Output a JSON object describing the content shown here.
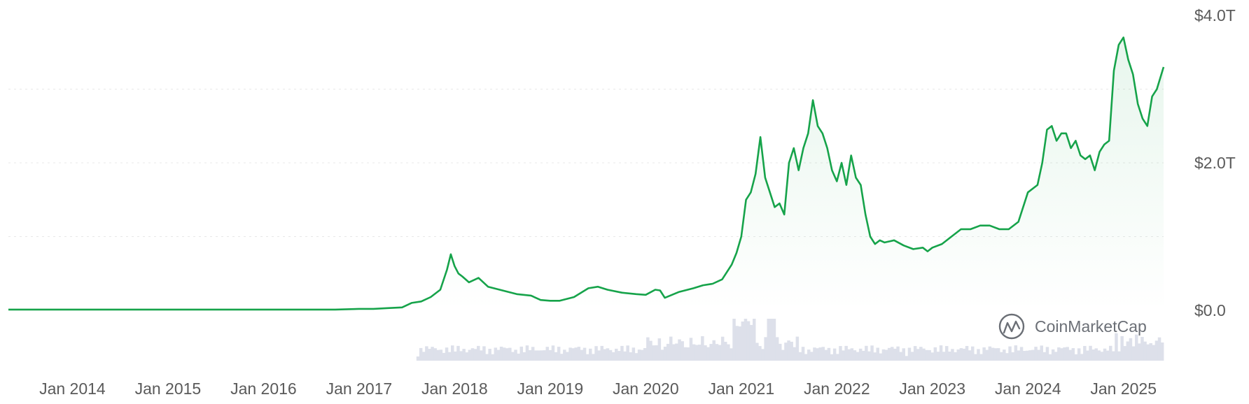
{
  "chart_data": {
    "type": "area",
    "title": "",
    "xlabel": "",
    "ylabel": "",
    "x_ticks": [
      "Jan 2014",
      "Jan 2015",
      "Jan 2016",
      "Jan 2017",
      "Jan 2018",
      "Jan 2019",
      "Jan 2020",
      "Jan 2021",
      "Jan 2022",
      "Jan 2023",
      "Jan 2024",
      "Jan 2025"
    ],
    "y_ticks": [
      "$0.0",
      "$2.0T",
      "$4.0T"
    ],
    "y_tick_values": [
      0,
      2.0,
      4.0
    ],
    "ylim": [
      0,
      4.0
    ],
    "xlim": [
      2013.33,
      2025.42
    ],
    "y_unit": "trillion USD",
    "grid": "horizontal dashed",
    "series": [
      {
        "color": "#16a34a",
        "x": [
          2013.33,
          2013.5,
          2013.75,
          2014.0,
          2014.25,
          2014.5,
          2014.75,
          2015.0,
          2015.25,
          2015.5,
          2015.75,
          2016.0,
          2016.25,
          2016.5,
          2016.75,
          2017.0,
          2017.15,
          2017.3,
          2017.45,
          2017.55,
          2017.65,
          2017.75,
          2017.85,
          2017.92,
          2017.96,
          2018.0,
          2018.04,
          2018.08,
          2018.15,
          2018.25,
          2018.35,
          2018.5,
          2018.65,
          2018.8,
          2018.9,
          2019.0,
          2019.1,
          2019.25,
          2019.4,
          2019.5,
          2019.6,
          2019.75,
          2019.9,
          2020.0,
          2020.1,
          2020.15,
          2020.2,
          2020.35,
          2020.5,
          2020.6,
          2020.7,
          2020.8,
          2020.9,
          2020.95,
          2021.0,
          2021.05,
          2021.1,
          2021.15,
          2021.2,
          2021.25,
          2021.3,
          2021.35,
          2021.4,
          2021.45,
          2021.5,
          2021.55,
          2021.6,
          2021.65,
          2021.7,
          2021.75,
          2021.8,
          2021.85,
          2021.9,
          2021.95,
          2022.0,
          2022.05,
          2022.1,
          2022.15,
          2022.2,
          2022.25,
          2022.3,
          2022.35,
          2022.4,
          2022.45,
          2022.5,
          2022.6,
          2022.7,
          2022.8,
          2022.9,
          2022.95,
          2023.0,
          2023.1,
          2023.2,
          2023.3,
          2023.4,
          2023.5,
          2023.6,
          2023.7,
          2023.8,
          2023.9,
          2024.0,
          2024.1,
          2024.15,
          2024.2,
          2024.25,
          2024.3,
          2024.35,
          2024.4,
          2024.45,
          2024.5,
          2024.55,
          2024.6,
          2024.65,
          2024.7,
          2024.75,
          2024.8,
          2024.85,
          2024.9,
          2024.95,
          2025.0,
          2025.05,
          2025.1,
          2025.15,
          2025.2,
          2025.25,
          2025.3,
          2025.35,
          2025.42
        ],
        "y": [
          0.01,
          0.01,
          0.01,
          0.01,
          0.01,
          0.01,
          0.01,
          0.01,
          0.01,
          0.01,
          0.01,
          0.01,
          0.01,
          0.01,
          0.01,
          0.02,
          0.02,
          0.03,
          0.04,
          0.1,
          0.12,
          0.18,
          0.28,
          0.55,
          0.76,
          0.6,
          0.5,
          0.46,
          0.38,
          0.44,
          0.32,
          0.27,
          0.22,
          0.2,
          0.14,
          0.13,
          0.13,
          0.18,
          0.3,
          0.32,
          0.28,
          0.24,
          0.22,
          0.21,
          0.28,
          0.27,
          0.17,
          0.25,
          0.3,
          0.34,
          0.36,
          0.42,
          0.62,
          0.78,
          1.0,
          1.5,
          1.6,
          1.85,
          2.35,
          1.8,
          1.6,
          1.4,
          1.45,
          1.3,
          2.0,
          2.2,
          1.9,
          2.2,
          2.4,
          2.85,
          2.5,
          2.4,
          2.2,
          1.9,
          1.75,
          2.0,
          1.7,
          2.1,
          1.8,
          1.7,
          1.3,
          1.0,
          0.9,
          0.95,
          0.92,
          0.95,
          0.88,
          0.83,
          0.85,
          0.8,
          0.85,
          0.9,
          1.0,
          1.1,
          1.1,
          1.15,
          1.15,
          1.1,
          1.1,
          1.2,
          1.6,
          1.7,
          2.0,
          2.45,
          2.5,
          2.3,
          2.4,
          2.4,
          2.2,
          2.3,
          2.1,
          2.05,
          2.1,
          1.9,
          2.15,
          2.25,
          2.3,
          3.25,
          3.6,
          3.7,
          3.4,
          3.2,
          2.8,
          2.6,
          2.5,
          2.9,
          3.0,
          3.3
        ]
      }
    ],
    "volume_bars_visible": true
  },
  "watermark": {
    "text": "CoinMarketCap",
    "icon": "coinmarketcap-logo-icon"
  },
  "colors": {
    "line": "#16a34a",
    "area_top": "rgba(22,163,74,0.10)",
    "grid": "#e8e8e8",
    "volume": "#dde0ea",
    "axis_text": "#5a5a5a"
  }
}
